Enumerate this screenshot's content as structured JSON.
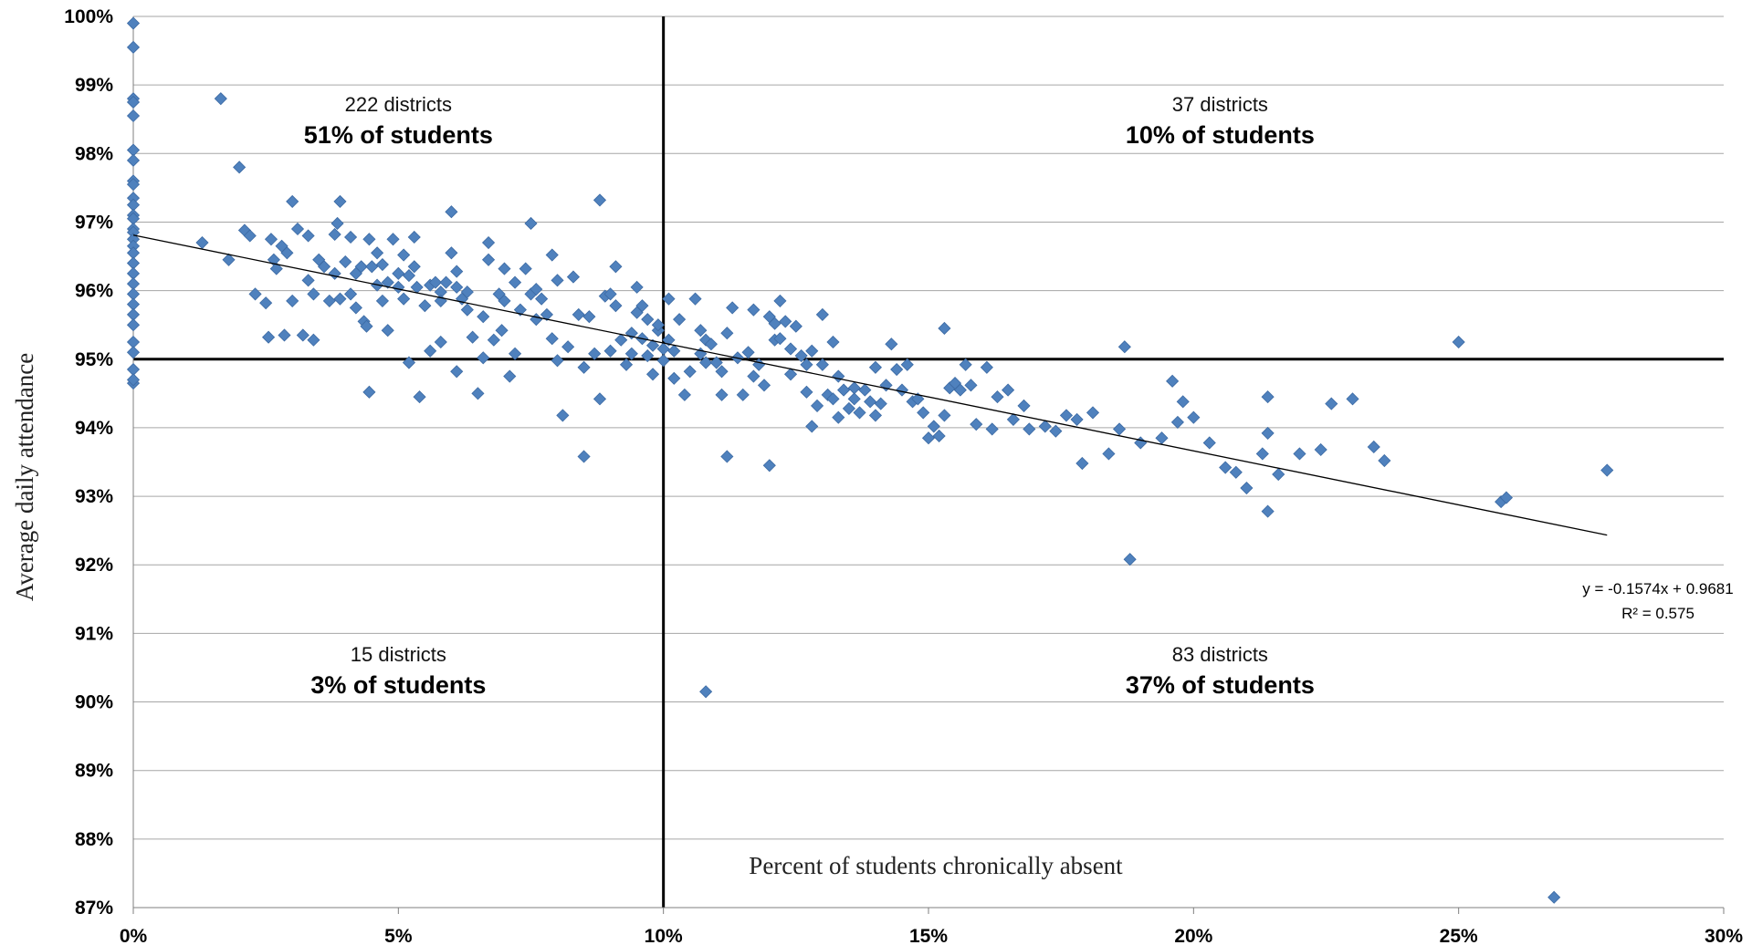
{
  "chart_data": {
    "type": "scatter",
    "title": "",
    "xlabel": "Percent of students chronically absent",
    "ylabel": "Average daily attendance",
    "xlim": [
      0,
      0.3
    ],
    "ylim": [
      0.87,
      1.0
    ],
    "x_ticks": [
      {
        "value": 0.0,
        "label": "0%"
      },
      {
        "value": 0.05,
        "label": "5%"
      },
      {
        "value": 0.1,
        "label": "10%"
      },
      {
        "value": 0.15,
        "label": "15%"
      },
      {
        "value": 0.2,
        "label": "20%"
      },
      {
        "value": 0.25,
        "label": "25%"
      },
      {
        "value": 0.3,
        "label": "30%"
      }
    ],
    "y_ticks": [
      {
        "value": 1.0,
        "label": "100%"
      },
      {
        "value": 0.99,
        "label": "99%"
      },
      {
        "value": 0.98,
        "label": "98%"
      },
      {
        "value": 0.97,
        "label": "97%"
      },
      {
        "value": 0.96,
        "label": "96%"
      },
      {
        "value": 0.95,
        "label": "95%"
      },
      {
        "value": 0.94,
        "label": "94%"
      },
      {
        "value": 0.93,
        "label": "93%"
      },
      {
        "value": 0.92,
        "label": "92%"
      },
      {
        "value": 0.91,
        "label": "91%"
      },
      {
        "value": 0.9,
        "label": "90%"
      },
      {
        "value": 0.89,
        "label": "89%"
      },
      {
        "value": 0.88,
        "label": "88%"
      },
      {
        "value": 0.87,
        "label": "87%"
      }
    ],
    "grid": true,
    "reference_lines": {
      "x": 0.1,
      "y": 0.95
    },
    "marker_color": "#4f81bd",
    "marker_shape": "diamond",
    "trendline": {
      "slope": -0.1574,
      "intercept": 0.9681,
      "x_range": [
        0,
        0.278
      ],
      "equation": "y = -0.1574x + 0.9681",
      "r_squared": "R² = 0.575"
    },
    "quadrant_annotations": [
      {
        "quadrant": "top-left",
        "x": 0.05,
        "districts": "222 districts",
        "students": "51% of students"
      },
      {
        "quadrant": "top-right",
        "x": 0.205,
        "districts": "37 districts",
        "students": "10% of students"
      },
      {
        "quadrant": "bottom-left",
        "x": 0.05,
        "districts": "15 districts",
        "students": "3% of students"
      },
      {
        "quadrant": "bottom-right",
        "x": 0.205,
        "districts": "83 districts",
        "students": "37% of students"
      }
    ],
    "points": [
      [
        0,
        0.999
      ],
      [
        0,
        0.9955
      ],
      [
        0,
        0.988
      ],
      [
        0,
        0.9875
      ],
      [
        0,
        0.9855
      ],
      [
        0,
        0.9805
      ],
      [
        0,
        0.979
      ],
      [
        0,
        0.976
      ],
      [
        0,
        0.9755
      ],
      [
        0,
        0.9735
      ],
      [
        0,
        0.9725
      ],
      [
        0,
        0.971
      ],
      [
        0,
        0.9705
      ],
      [
        0,
        0.969
      ],
      [
        0,
        0.9685
      ],
      [
        0,
        0.9675
      ],
      [
        0,
        0.9665
      ],
      [
        0,
        0.9655
      ],
      [
        0,
        0.964
      ],
      [
        0,
        0.9625
      ],
      [
        0,
        0.961
      ],
      [
        0,
        0.9595
      ],
      [
        0,
        0.958
      ],
      [
        0,
        0.9565
      ],
      [
        0,
        0.955
      ],
      [
        0,
        0.9525
      ],
      [
        0,
        0.951
      ],
      [
        0,
        0.9485
      ],
      [
        0,
        0.9465
      ],
      [
        0,
        0.947
      ],
      [
        0.013,
        0.967
      ],
      [
        0.0165,
        0.988
      ],
      [
        0.018,
        0.9645
      ],
      [
        0.02,
        0.978
      ],
      [
        0.021,
        0.9688
      ],
      [
        0.022,
        0.968
      ],
      [
        0.023,
        0.9595
      ],
      [
        0.025,
        0.9582
      ],
      [
        0.0255,
        0.9532
      ],
      [
        0.026,
        0.9675
      ],
      [
        0.0265,
        0.9645
      ],
      [
        0.027,
        0.9632
      ],
      [
        0.028,
        0.9665
      ],
      [
        0.0285,
        0.9535
      ],
      [
        0.029,
        0.9655
      ],
      [
        0.03,
        0.9585
      ],
      [
        0.03,
        0.973
      ],
      [
        0.031,
        0.969
      ],
      [
        0.032,
        0.9535
      ],
      [
        0.033,
        0.968
      ],
      [
        0.033,
        0.9615
      ],
      [
        0.034,
        0.9595
      ],
      [
        0.034,
        0.9528
      ],
      [
        0.035,
        0.9645
      ],
      [
        0.036,
        0.9635
      ],
      [
        0.037,
        0.9585
      ],
      [
        0.038,
        0.9682
      ],
      [
        0.038,
        0.9625
      ],
      [
        0.0385,
        0.9698
      ],
      [
        0.039,
        0.973
      ],
      [
        0.039,
        0.9588
      ],
      [
        0.04,
        0.9642
      ],
      [
        0.041,
        0.9678
      ],
      [
        0.041,
        0.9595
      ],
      [
        0.042,
        0.9625
      ],
      [
        0.042,
        0.9575
      ],
      [
        0.043,
        0.9635
      ],
      [
        0.0435,
        0.9555
      ],
      [
        0.044,
        0.9548
      ],
      [
        0.0445,
        0.9452
      ],
      [
        0.0445,
        0.9675
      ],
      [
        0.045,
        0.9635
      ],
      [
        0.046,
        0.9608
      ],
      [
        0.046,
        0.9655
      ],
      [
        0.047,
        0.9638
      ],
      [
        0.047,
        0.9585
      ],
      [
        0.048,
        0.9612
      ],
      [
        0.048,
        0.9542
      ],
      [
        0.049,
        0.9675
      ],
      [
        0.05,
        0.9625
      ],
      [
        0.05,
        0.9605
      ],
      [
        0.051,
        0.9652
      ],
      [
        0.051,
        0.9588
      ],
      [
        0.052,
        0.9622
      ],
      [
        0.052,
        0.9495
      ],
      [
        0.053,
        0.9635
      ],
      [
        0.053,
        0.9678
      ],
      [
        0.0535,
        0.9605
      ],
      [
        0.054,
        0.9445
      ],
      [
        0.055,
        0.9578
      ],
      [
        0.056,
        0.9608
      ],
      [
        0.056,
        0.9512
      ],
      [
        0.057,
        0.9612
      ],
      [
        0.058,
        0.9598
      ],
      [
        0.058,
        0.9585
      ],
      [
        0.058,
        0.9525
      ],
      [
        0.059,
        0.9612
      ],
      [
        0.06,
        0.9655
      ],
      [
        0.06,
        0.9715
      ],
      [
        0.061,
        0.9628
      ],
      [
        0.061,
        0.9605
      ],
      [
        0.061,
        0.9482
      ],
      [
        0.062,
        0.9588
      ],
      [
        0.063,
        0.9572
      ],
      [
        0.063,
        0.9598
      ],
      [
        0.064,
        0.9532
      ],
      [
        0.065,
        0.945
      ],
      [
        0.066,
        0.9562
      ],
      [
        0.066,
        0.9502
      ],
      [
        0.067,
        0.9645
      ],
      [
        0.067,
        0.967
      ],
      [
        0.068,
        0.9528
      ],
      [
        0.069,
        0.9595
      ],
      [
        0.0695,
        0.9542
      ],
      [
        0.07,
        0.9585
      ],
      [
        0.07,
        0.9632
      ],
      [
        0.071,
        0.9475
      ],
      [
        0.072,
        0.9612
      ],
      [
        0.072,
        0.9508
      ],
      [
        0.073,
        0.9572
      ],
      [
        0.074,
        0.9632
      ],
      [
        0.075,
        0.9698
      ],
      [
        0.075,
        0.9595
      ],
      [
        0.076,
        0.9602
      ],
      [
        0.076,
        0.9558
      ],
      [
        0.077,
        0.9588
      ],
      [
        0.078,
        0.9565
      ],
      [
        0.079,
        0.9652
      ],
      [
        0.079,
        0.953
      ],
      [
        0.08,
        0.9615
      ],
      [
        0.08,
        0.9498
      ],
      [
        0.081,
        0.9418
      ],
      [
        0.082,
        0.9518
      ],
      [
        0.083,
        0.962
      ],
      [
        0.084,
        0.9565
      ],
      [
        0.085,
        0.9488
      ],
      [
        0.085,
        0.9358
      ],
      [
        0.086,
        0.9562
      ],
      [
        0.087,
        0.9508
      ],
      [
        0.088,
        0.9442
      ],
      [
        0.088,
        0.9732
      ],
      [
        0.089,
        0.9592
      ],
      [
        0.09,
        0.9595
      ],
      [
        0.09,
        0.9512
      ],
      [
        0.091,
        0.9635
      ],
      [
        0.091,
        0.9578
      ],
      [
        0.092,
        0.9528
      ],
      [
        0.093,
        0.9492
      ],
      [
        0.094,
        0.9538
      ],
      [
        0.094,
        0.9508
      ],
      [
        0.095,
        0.9568
      ],
      [
        0.095,
        0.9605
      ],
      [
        0.096,
        0.9578
      ],
      [
        0.096,
        0.953
      ],
      [
        0.097,
        0.9558
      ],
      [
        0.097,
        0.9505
      ],
      [
        0.098,
        0.952
      ],
      [
        0.098,
        0.9478
      ],
      [
        0.099,
        0.9542
      ],
      [
        0.099,
        0.955
      ],
      [
        0.1,
        0.9515
      ],
      [
        0.1,
        0.9498
      ],
      [
        0.101,
        0.9588
      ],
      [
        0.101,
        0.9528
      ],
      [
        0.102,
        0.9512
      ],
      [
        0.102,
        0.9472
      ],
      [
        0.103,
        0.9558
      ],
      [
        0.104,
        0.9448
      ],
      [
        0.105,
        0.9482
      ],
      [
        0.106,
        0.9588
      ],
      [
        0.107,
        0.9542
      ],
      [
        0.107,
        0.9508
      ],
      [
        0.108,
        0.9528
      ],
      [
        0.108,
        0.9495
      ],
      [
        0.108,
        0.9015
      ],
      [
        0.109,
        0.9522
      ],
      [
        0.11,
        0.9495
      ],
      [
        0.111,
        0.9482
      ],
      [
        0.111,
        0.9448
      ],
      [
        0.112,
        0.9538
      ],
      [
        0.112,
        0.9358
      ],
      [
        0.113,
        0.9575
      ],
      [
        0.114,
        0.9502
      ],
      [
        0.115,
        0.9448
      ],
      [
        0.116,
        0.951
      ],
      [
        0.117,
        0.9475
      ],
      [
        0.117,
        0.9572
      ],
      [
        0.118,
        0.9492
      ],
      [
        0.119,
        0.9462
      ],
      [
        0.12,
        0.9562
      ],
      [
        0.12,
        0.9345
      ],
      [
        0.121,
        0.9528
      ],
      [
        0.121,
        0.9552
      ],
      [
        0.122,
        0.953
      ],
      [
        0.122,
        0.9585
      ],
      [
        0.123,
        0.9555
      ],
      [
        0.124,
        0.9515
      ],
      [
        0.124,
        0.9478
      ],
      [
        0.125,
        0.9548
      ],
      [
        0.126,
        0.9505
      ],
      [
        0.127,
        0.9492
      ],
      [
        0.127,
        0.9452
      ],
      [
        0.128,
        0.9512
      ],
      [
        0.128,
        0.9402
      ],
      [
        0.129,
        0.9432
      ],
      [
        0.13,
        0.9565
      ],
      [
        0.13,
        0.9492
      ],
      [
        0.131,
        0.9448
      ],
      [
        0.132,
        0.9525
      ],
      [
        0.132,
        0.9442
      ],
      [
        0.133,
        0.9415
      ],
      [
        0.133,
        0.9475
      ],
      [
        0.134,
        0.9455
      ],
      [
        0.135,
        0.9428
      ],
      [
        0.136,
        0.9442
      ],
      [
        0.136,
        0.9458
      ],
      [
        0.137,
        0.9422
      ],
      [
        0.138,
        0.9455
      ],
      [
        0.139,
        0.9438
      ],
      [
        0.14,
        0.9488
      ],
      [
        0.14,
        0.9418
      ],
      [
        0.141,
        0.9435
      ],
      [
        0.142,
        0.9462
      ],
      [
        0.143,
        0.9522
      ],
      [
        0.144,
        0.9485
      ],
      [
        0.145,
        0.9455
      ],
      [
        0.146,
        0.9492
      ],
      [
        0.147,
        0.9438
      ],
      [
        0.148,
        0.9442
      ],
      [
        0.149,
        0.9422
      ],
      [
        0.15,
        0.9385
      ],
      [
        0.151,
        0.9402
      ],
      [
        0.152,
        0.9388
      ],
      [
        0.153,
        0.9418
      ],
      [
        0.153,
        0.9545
      ],
      [
        0.154,
        0.9458
      ],
      [
        0.155,
        0.9465
      ],
      [
        0.156,
        0.9455
      ],
      [
        0.157,
        0.9492
      ],
      [
        0.158,
        0.9462
      ],
      [
        0.159,
        0.9405
      ],
      [
        0.161,
        0.9488
      ],
      [
        0.162,
        0.9398
      ],
      [
        0.163,
        0.9445
      ],
      [
        0.165,
        0.9455
      ],
      [
        0.166,
        0.9412
      ],
      [
        0.168,
        0.9432
      ],
      [
        0.169,
        0.9398
      ],
      [
        0.172,
        0.9402
      ],
      [
        0.174,
        0.9395
      ],
      [
        0.176,
        0.9418
      ],
      [
        0.178,
        0.9412
      ],
      [
        0.179,
        0.9348
      ],
      [
        0.181,
        0.9422
      ],
      [
        0.184,
        0.9362
      ],
      [
        0.186,
        0.9398
      ],
      [
        0.187,
        0.9518
      ],
      [
        0.188,
        0.9208
      ],
      [
        0.19,
        0.9378
      ],
      [
        0.194,
        0.9385
      ],
      [
        0.196,
        0.9468
      ],
      [
        0.197,
        0.9408
      ],
      [
        0.198,
        0.9438
      ],
      [
        0.2,
        0.9415
      ],
      [
        0.203,
        0.9378
      ],
      [
        0.206,
        0.9342
      ],
      [
        0.208,
        0.9335
      ],
      [
        0.21,
        0.9312
      ],
      [
        0.213,
        0.9362
      ],
      [
        0.214,
        0.9445
      ],
      [
        0.214,
        0.9392
      ],
      [
        0.214,
        0.9278
      ],
      [
        0.216,
        0.9332
      ],
      [
        0.22,
        0.9362
      ],
      [
        0.224,
        0.9368
      ],
      [
        0.226,
        0.9435
      ],
      [
        0.23,
        0.9442
      ],
      [
        0.234,
        0.9372
      ],
      [
        0.236,
        0.9352
      ],
      [
        0.25,
        0.9525
      ],
      [
        0.258,
        0.9292
      ],
      [
        0.259,
        0.9298
      ],
      [
        0.268,
        0.8715
      ],
      [
        0.278,
        0.9338
      ]
    ]
  }
}
